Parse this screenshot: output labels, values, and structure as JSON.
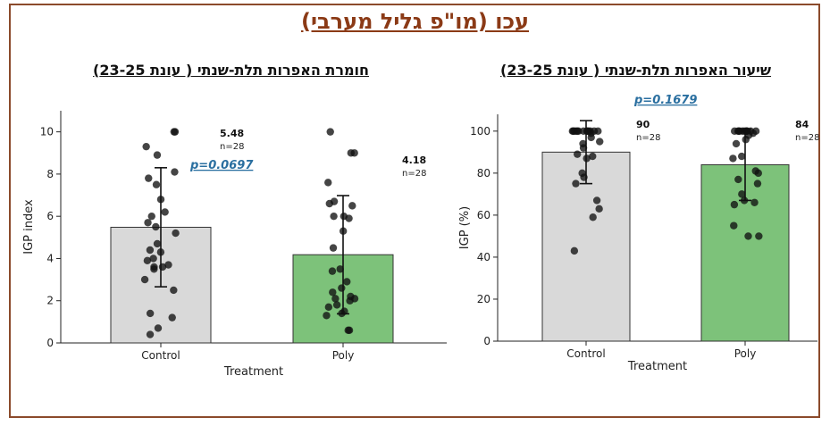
{
  "title": "עכו (מו\"פ גליל מערבי)",
  "chart_data": [
    {
      "type": "bar",
      "title": "חומרת האפרות תלת-שנתי ( עונת 23-25)",
      "xlabel": "Treatment",
      "ylabel": "IGP index",
      "ylim": [
        0,
        11
      ],
      "yticks": [
        0,
        2,
        4,
        6,
        8,
        10
      ],
      "categories": [
        "Control",
        "Poly"
      ],
      "values": [
        5.48,
        4.18
      ],
      "error": [
        2.82,
        2.8
      ],
      "colors": [
        "#d9d9d9",
        "#7dc27a"
      ],
      "value_labels": [
        "5.48",
        "4.18"
      ],
      "n_labels": [
        "n=28",
        "n=28"
      ],
      "p_value": "p=0.0697",
      "points": [
        [
          10,
          10,
          9.3,
          8.9,
          8.1,
          7.8,
          7.5,
          6.8,
          6.2,
          6.0,
          5.7,
          5.2,
          4.7,
          4.4,
          4.3,
          4.0,
          3.9,
          3.7,
          3.6,
          3.5,
          3.0,
          2.5,
          1.4,
          1.2,
          0.7,
          0.4,
          3.6,
          5.5
        ],
        [
          10,
          9.0,
          9.0,
          7.6,
          6.7,
          6.6,
          6.5,
          6.0,
          6.0,
          5.9,
          4.5,
          3.5,
          3.4,
          2.9,
          2.4,
          2.2,
          2.1,
          2.1,
          2.0,
          1.8,
          1.7,
          1.5,
          1.4,
          1.3,
          0.6,
          0.6,
          5.3,
          2.6
        ]
      ]
    },
    {
      "type": "bar",
      "title": "שיעור האפרות תלת-שנתי ( עונת 23-25)",
      "xlabel": "Treatment",
      "ylabel": "IGP (%)",
      "ylim": [
        0,
        108
      ],
      "yticks": [
        0,
        20,
        40,
        60,
        80,
        100
      ],
      "categories": [
        "Control",
        "Poly"
      ],
      "values": [
        90,
        84
      ],
      "error": [
        15,
        17
      ],
      "colors": [
        "#d9d9d9",
        "#7dc27a"
      ],
      "value_labels": [
        "90",
        "84"
      ],
      "n_labels": [
        "n=28",
        "n=28"
      ],
      "p_value": "p=0.1679",
      "points": [
        [
          100,
          100,
          100,
          100,
          100,
          100,
          100,
          100,
          100,
          100,
          100,
          100,
          100,
          95,
          94,
          92,
          89,
          88,
          87,
          80,
          78,
          75,
          67,
          63,
          59,
          43,
          97,
          99
        ],
        [
          100,
          100,
          100,
          100,
          100,
          100,
          100,
          100,
          100,
          100,
          100,
          96,
          94,
          88,
          87,
          81,
          80,
          77,
          75,
          70,
          67,
          66,
          65,
          55,
          50,
          50,
          98,
          99
        ]
      ]
    }
  ]
}
